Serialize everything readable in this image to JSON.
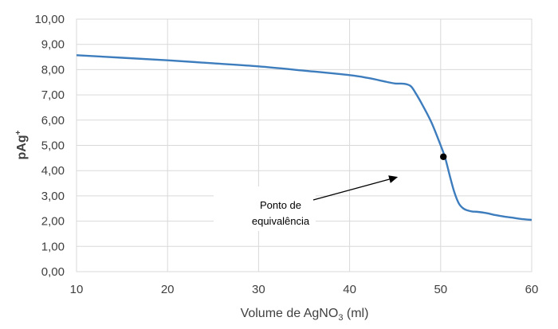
{
  "chart_data": {
    "type": "line",
    "title": "",
    "xlabel_main": "Volume de AgNO",
    "xlabel_sub": "3",
    "xlabel_tail": " (ml)",
    "ylabel_main": "pAg",
    "ylabel_sup": "+",
    "xlim": [
      10,
      60
    ],
    "ylim": [
      0,
      10
    ],
    "x_ticks": [
      10,
      20,
      30,
      40,
      50,
      60
    ],
    "y_ticks": [
      "0,00",
      "1,00",
      "2,00",
      "3,00",
      "4,00",
      "5,00",
      "6,00",
      "7,00",
      "8,00",
      "9,00",
      "10,00"
    ],
    "grid": true,
    "legend": "none",
    "series": [
      {
        "color": "#3d7dbd",
        "x": [
          10,
          15,
          20,
          25,
          30,
          35,
          40,
          42,
          44,
          45,
          46,
          46.7,
          47.2,
          48,
          49,
          50,
          50.5,
          51,
          51.5,
          52,
          52.5,
          53,
          53.5,
          54,
          55,
          56,
          57,
          58,
          59,
          60
        ],
        "y": [
          8.57,
          8.47,
          8.37,
          8.25,
          8.13,
          7.96,
          7.78,
          7.67,
          7.52,
          7.45,
          7.44,
          7.35,
          7.1,
          6.6,
          5.9,
          5.0,
          4.5,
          3.8,
          3.15,
          2.7,
          2.5,
          2.42,
          2.38,
          2.37,
          2.32,
          2.24,
          2.18,
          2.13,
          2.08,
          2.05
        ]
      }
    ],
    "marked_point": {
      "x": 50.3,
      "y": 4.55,
      "color": "#000000"
    },
    "annotations": [
      {
        "lines": [
          "Ponto de",
          "equivalência"
        ],
        "arrow_to": {
          "x": 45.3,
          "y": 3.75
        }
      }
    ]
  }
}
